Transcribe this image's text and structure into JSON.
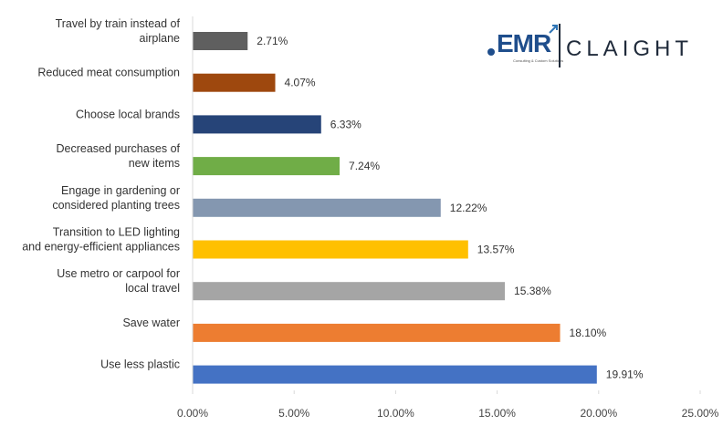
{
  "chart_data": {
    "type": "bar",
    "orientation": "horizontal",
    "categories": [
      [
        "Travel by train instead of",
        "airplane"
      ],
      [
        "Reduced meat consumption"
      ],
      [
        "Choose local brands"
      ],
      [
        "Decreased purchases of",
        "new items"
      ],
      [
        "Engage in gardening or",
        "considered planting trees"
      ],
      [
        "Transition to LED lighting",
        "and energy-efficient appliances"
      ],
      [
        "Use metro or carpool for",
        "local travel"
      ],
      [
        "Save water"
      ],
      [
        "Use less plastic"
      ]
    ],
    "values": [
      2.71,
      4.07,
      6.33,
      7.24,
      12.22,
      13.57,
      15.38,
      18.1,
      19.91
    ],
    "value_labels": [
      "2.71%",
      "4.07%",
      "6.33%",
      "7.24%",
      "12.22%",
      "13.57%",
      "15.38%",
      "18.10%",
      "19.91%"
    ],
    "colors": [
      "#5f5f5f",
      "#9e480e",
      "#264478",
      "#70ad47",
      "#8497b0",
      "#ffc000",
      "#a5a5a5",
      "#ed7d31",
      "#4472c4"
    ],
    "xlim": [
      0,
      25
    ],
    "ticks": [
      0,
      5,
      10,
      15,
      20,
      25
    ],
    "tick_labels": [
      "0.00%",
      "5.00%",
      "10.00%",
      "15.00%",
      "20.00%",
      "25.00%"
    ],
    "title": "",
    "xlabel": "",
    "ylabel": "",
    "legend": "none",
    "grid": false
  },
  "logo": {
    "left_text": "EMR",
    "left_subtext": "Consulting & Custom Solutions",
    "right_text": "CLAIGHT"
  },
  "theme": {
    "axis_color": "#d9d9d9",
    "text_color": "#333333",
    "logo_color": "#1f4e8c"
  }
}
